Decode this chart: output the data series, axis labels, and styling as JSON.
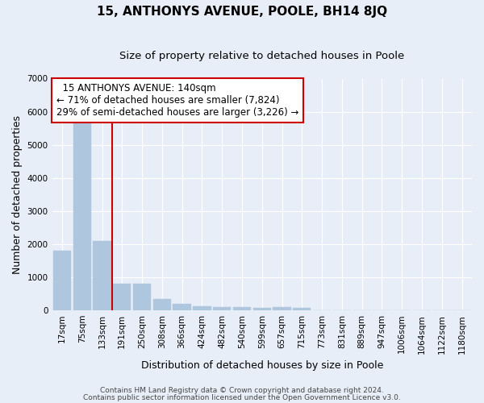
{
  "title": "15, ANTHONYS AVENUE, POOLE, BH14 8JQ",
  "subtitle": "Size of property relative to detached houses in Poole",
  "xlabel": "Distribution of detached houses by size in Poole",
  "ylabel": "Number of detached properties",
  "categories": [
    "17sqm",
    "75sqm",
    "133sqm",
    "191sqm",
    "250sqm",
    "308sqm",
    "366sqm",
    "424sqm",
    "482sqm",
    "540sqm",
    "599sqm",
    "657sqm",
    "715sqm",
    "773sqm",
    "831sqm",
    "889sqm",
    "947sqm",
    "1006sqm",
    "1064sqm",
    "1122sqm",
    "1180sqm"
  ],
  "values": [
    1800,
    5750,
    2100,
    800,
    800,
    350,
    200,
    120,
    110,
    90,
    70,
    110,
    70,
    0,
    0,
    0,
    0,
    0,
    0,
    0,
    0
  ],
  "bar_color": "#aec6de",
  "bar_edge_color": "#aec6de",
  "highlight_index": 2,
  "red_line_x": 2.5,
  "annotation_line1": "  15 ANTHONYS AVENUE: 140sqm",
  "annotation_line2": "← 71% of detached houses are smaller (7,824)",
  "annotation_line3": "29% of semi-detached houses are larger (3,226) →",
  "annotation_box_color": "#ffffff",
  "annotation_box_edge_color": "#cc0000",
  "red_line_color": "#cc0000",
  "ylim": [
    0,
    7000
  ],
  "yticks": [
    0,
    1000,
    2000,
    3000,
    4000,
    5000,
    6000,
    7000
  ],
  "background_color": "#e8eef8",
  "plot_background_color": "#e8eef8",
  "footer_line1": "Contains HM Land Registry data © Crown copyright and database right 2024.",
  "footer_line2": "Contains public sector information licensed under the Open Government Licence v3.0.",
  "title_fontsize": 11,
  "subtitle_fontsize": 9.5,
  "axis_label_fontsize": 9,
  "tick_fontsize": 7.5,
  "annotation_fontsize": 8.5,
  "footer_fontsize": 6.5
}
